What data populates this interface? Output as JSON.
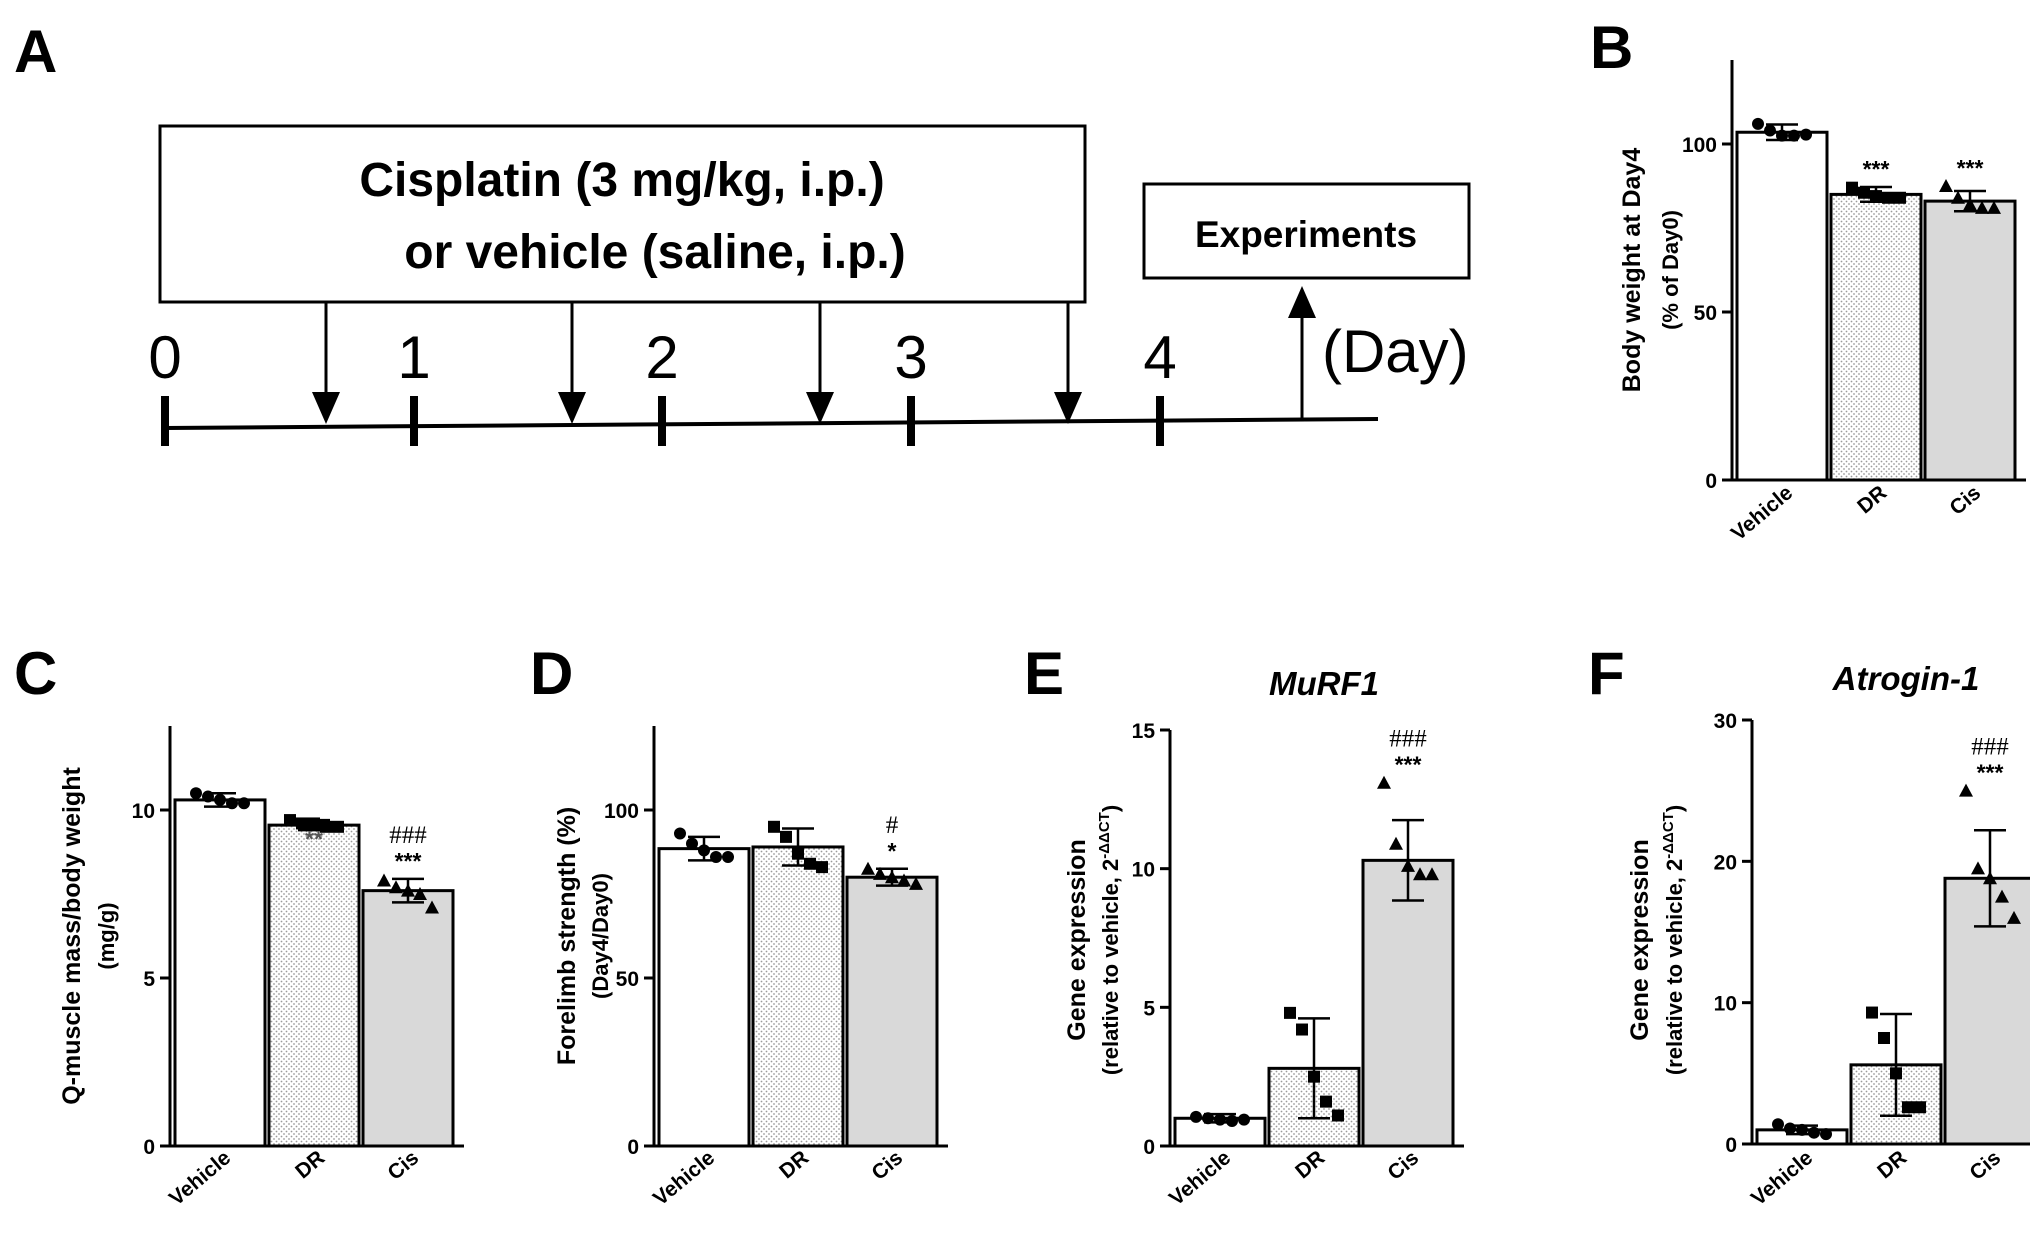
{
  "figure": {
    "timeline": {
      "panel_label": "A",
      "box_line1": "Cisplatin (3 mg/kg, i.p.)",
      "box_line2": "or vehicle (saline, i.p.)",
      "experiments_label": "Experiments",
      "day_numbers": [
        "0",
        "1",
        "2",
        "3",
        "4"
      ],
      "day_unit": "(Day)"
    }
  },
  "chart_data": [
    {
      "id": "B",
      "panel_label": "B",
      "type": "bar",
      "title": "",
      "ylabel": "Body weight at Day4",
      "ylabel2": "(% of Day0)",
      "ylabel2_sup": "",
      "ylim": [
        0,
        125
      ],
      "yticks": [
        0,
        50,
        100
      ],
      "categories": [
        "Vehicle",
        "DR",
        "Cis"
      ],
      "values": [
        103.5,
        85,
        83
      ],
      "errors": [
        2.3,
        2.2,
        3
      ],
      "points": [
        [
          106,
          104,
          102.5,
          102.5,
          102.8
        ],
        [
          87,
          85.5,
          84.5,
          84,
          84
        ],
        [
          87.5,
          84,
          82,
          81,
          81
        ]
      ],
      "markers": [
        "circle",
        "square",
        "triangle"
      ],
      "annot_top": [
        "",
        "",
        ""
      ],
      "annot_bottom": [
        "",
        "***",
        "***"
      ]
    },
    {
      "id": "C",
      "panel_label": "C",
      "type": "bar",
      "title": "",
      "ylabel": "Q-muscle mass/body weight",
      "ylabel2": "(mg/g)",
      "ylabel2_sup": "",
      "ylim": [
        0,
        12.5
      ],
      "yticks": [
        0,
        5,
        10
      ],
      "categories": [
        "Vehicle",
        "DR",
        "Cis"
      ],
      "values": [
        10.3,
        9.55,
        7.6
      ],
      "errors": [
        0.2,
        0.15,
        0.35
      ],
      "points": [
        [
          10.5,
          10.4,
          10.3,
          10.2,
          10.2
        ],
        [
          9.7,
          9.6,
          9.6,
          9.5,
          9.5
        ],
        [
          7.9,
          7.7,
          7.6,
          7.5,
          7.1
        ]
      ],
      "markers": [
        "circle",
        "square",
        "triangle"
      ],
      "annot_top": [
        "",
        "",
        "###"
      ],
      "annot_bottom": [
        "",
        "**",
        "***"
      ]
    },
    {
      "id": "D",
      "panel_label": "D",
      "type": "bar",
      "title": "",
      "ylabel": "Forelimb strength (%)",
      "ylabel2": "(Day4/Day0)",
      "ylabel2_sup": "",
      "ylim": [
        0,
        125
      ],
      "yticks": [
        0,
        50,
        100
      ],
      "categories": [
        "Vehicle",
        "DR",
        "Cis"
      ],
      "values": [
        88.5,
        89,
        80
      ],
      "errors": [
        3.5,
        5.5,
        2.5
      ],
      "points": [
        [
          93,
          90,
          88,
          86,
          86
        ],
        [
          95,
          92,
          87,
          84,
          83
        ],
        [
          82.5,
          81,
          80,
          79,
          78
        ]
      ],
      "markers": [
        "circle",
        "square",
        "triangle"
      ],
      "annot_top": [
        "",
        "",
        "#"
      ],
      "annot_bottom": [
        "",
        "",
        "*"
      ]
    },
    {
      "id": "E",
      "panel_label": "E",
      "type": "bar",
      "title": "MuRF1",
      "ylabel": "Gene expression",
      "ylabel2": "(relative to vehicle, 2",
      "ylabel2_sup": "-ΔΔCT",
      "ylim": [
        0,
        15
      ],
      "yticks": [
        0,
        5,
        10,
        15
      ],
      "categories": [
        "Vehicle",
        "DR",
        "Cis"
      ],
      "values": [
        1,
        2.8,
        10.3
      ],
      "errors": [
        0.15,
        1.8,
        1.45
      ],
      "points": [
        [
          1.05,
          1.0,
          0.95,
          0.9,
          0.95
        ],
        [
          4.8,
          4.2,
          2.5,
          1.6,
          1.1
        ],
        [
          13.1,
          10.9,
          10.1,
          9.8,
          9.8
        ]
      ],
      "markers": [
        "circle",
        "square",
        "triangle"
      ],
      "annot_top": [
        "",
        "",
        "###"
      ],
      "annot_bottom": [
        "",
        "",
        "***"
      ]
    },
    {
      "id": "F",
      "panel_label": "F",
      "type": "bar",
      "title": "Atrogin-1",
      "ylabel": "Gene expression",
      "ylabel2": "(relative to vehicle, 2",
      "ylabel2_sup": "-ΔΔCT",
      "ylim": [
        0,
        30
      ],
      "yticks": [
        0,
        10,
        20,
        30
      ],
      "categories": [
        "Vehicle",
        "DR",
        "Cis"
      ],
      "values": [
        1,
        5.6,
        18.8
      ],
      "errors": [
        0.3,
        3.6,
        3.4
      ],
      "points": [
        [
          1.4,
          1.1,
          1.0,
          0.8,
          0.7
        ],
        [
          9.3,
          7.5,
          5.0,
          2.6,
          2.6
        ],
        [
          25,
          19.5,
          18.8,
          17.5,
          16.0
        ]
      ],
      "markers": [
        "circle",
        "square",
        "triangle"
      ],
      "annot_top": [
        "",
        "",
        "###"
      ],
      "annot_bottom": [
        "",
        "",
        "***"
      ]
    }
  ]
}
